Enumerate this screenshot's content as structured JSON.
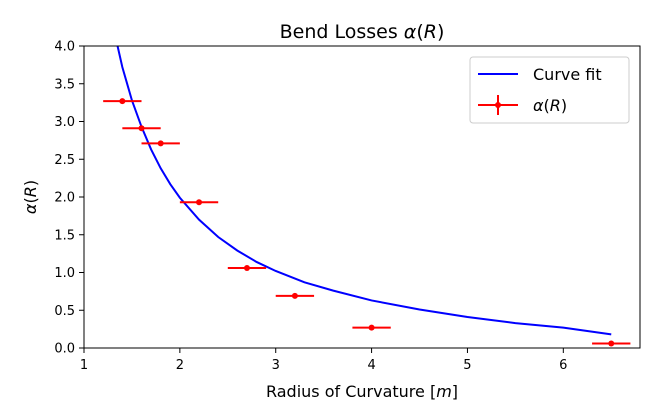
{
  "chart_data": {
    "type": "scatter",
    "title": "Bend Losses α(R)",
    "xlabel": "Radius of Curvature [m]",
    "ylabel": "α(R)",
    "xlim": [
      1.0,
      6.8
    ],
    "ylim": [
      0.0,
      4.0
    ],
    "xticks": [
      "1",
      "2",
      "3",
      "4",
      "5",
      "6"
    ],
    "yticks": [
      "0.0",
      "0.5",
      "1.0",
      "1.5",
      "2.0",
      "2.5",
      "3.0",
      "3.5",
      "4.0"
    ],
    "grid": false,
    "legend_position": "top-right",
    "series": [
      {
        "name": "Curve fit",
        "kind": "line",
        "color": "#0000ff",
        "x": [
          1.35,
          1.4,
          1.5,
          1.6,
          1.7,
          1.8,
          1.9,
          2.0,
          2.2,
          2.4,
          2.6,
          2.8,
          3.0,
          3.3,
          3.6,
          4.0,
          4.5,
          5.0,
          5.5,
          6.0,
          6.5
        ],
        "y": [
          4.0,
          3.72,
          3.28,
          2.93,
          2.63,
          2.38,
          2.17,
          1.99,
          1.7,
          1.47,
          1.29,
          1.14,
          1.02,
          0.87,
          0.76,
          0.63,
          0.51,
          0.41,
          0.33,
          0.27,
          0.18
        ]
      },
      {
        "name": "α(R)",
        "kind": "errorbar",
        "color": "#ff0000",
        "x": [
          1.4,
          1.6,
          1.8,
          2.2,
          2.7,
          3.2,
          4.0,
          6.5
        ],
        "y": [
          3.27,
          2.91,
          2.71,
          1.93,
          1.06,
          0.69,
          0.27,
          0.06
        ],
        "xerr": [
          0.2,
          0.2,
          0.2,
          0.2,
          0.2,
          0.2,
          0.2,
          0.2
        ]
      }
    ]
  }
}
